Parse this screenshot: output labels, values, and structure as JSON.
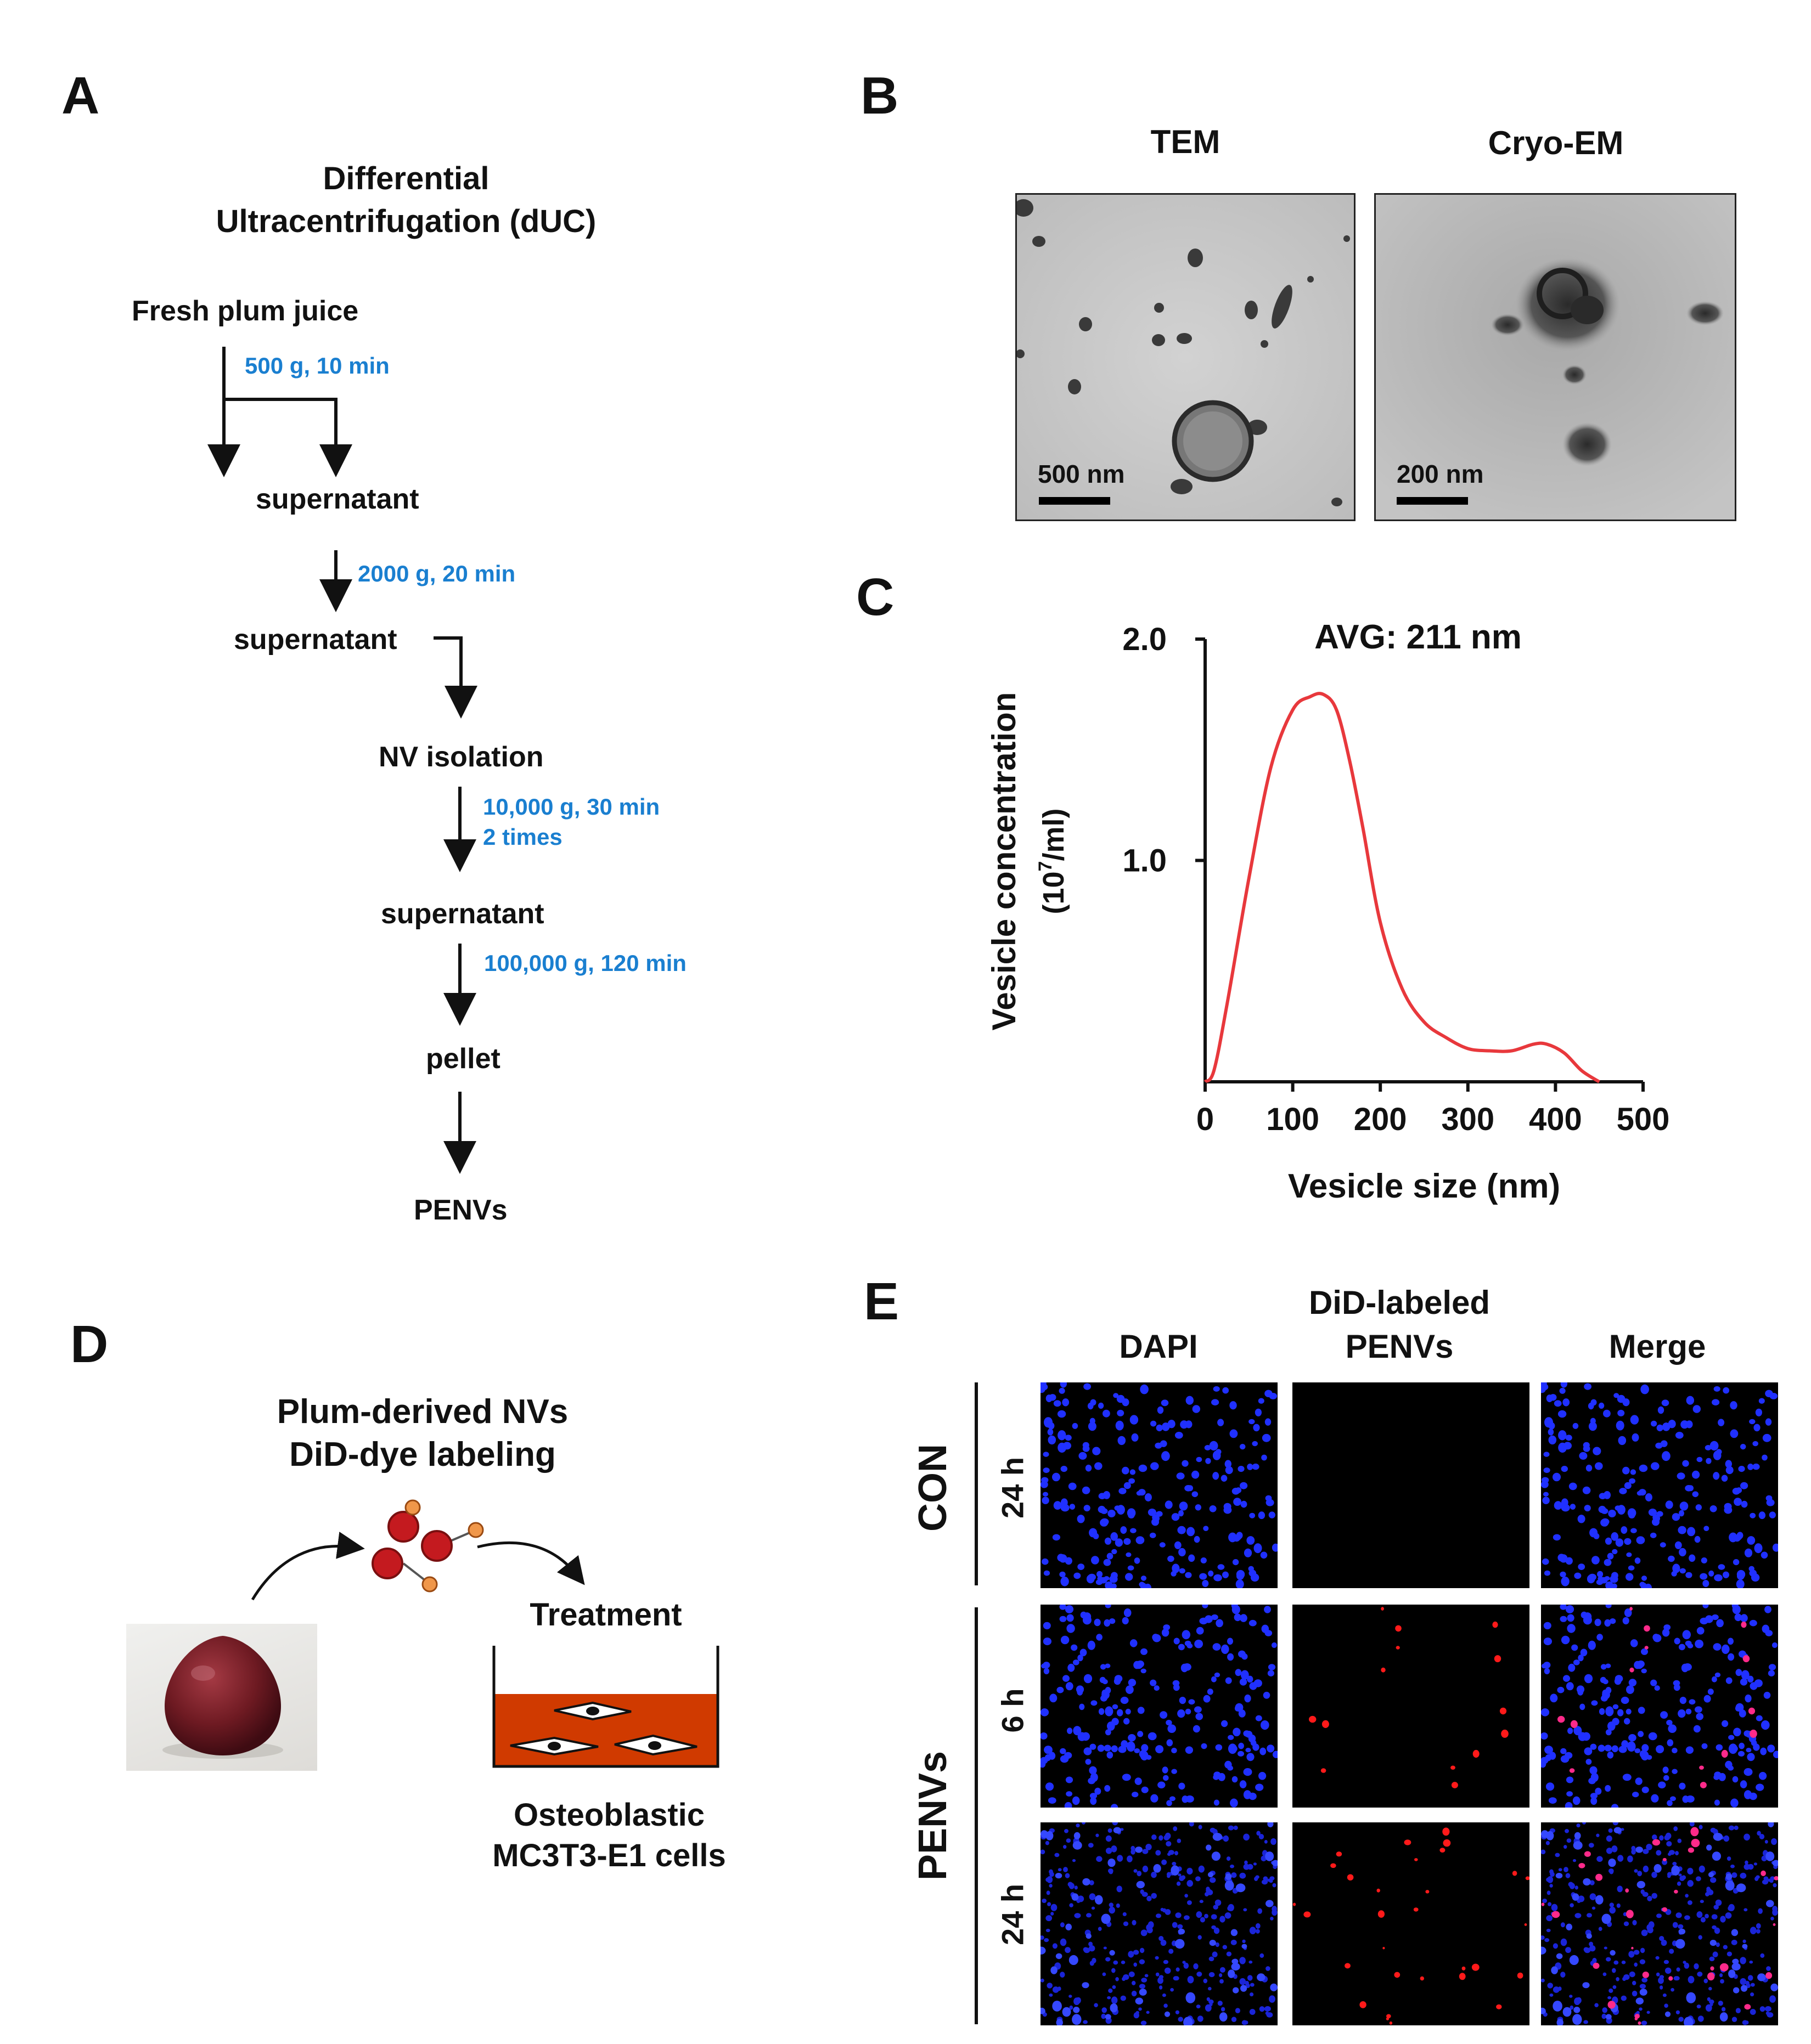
{
  "panels": {
    "a": "A",
    "b": "B",
    "c": "C",
    "d": "D",
    "e": "E"
  },
  "panelA": {
    "title_line1": "Differential",
    "title_line2": "Ultracentrifugation (dUC)",
    "steps": [
      "Fresh plum juice",
      "supernatant",
      "supernatant",
      "NV isolation",
      "supernatant",
      "pellet",
      "PENVs"
    ],
    "conditions": {
      "c1": "500 g, 10 min",
      "c2": "2000 g, 20 min",
      "c3_line1": "10,000 g, 30 min",
      "c3_line2": "2 times",
      "c4": "100,000 g, 120 min"
    },
    "condition_color": "#1a7fd0"
  },
  "panelB": {
    "tem_title": "TEM",
    "cryo_title": "Cryo-EM",
    "tem_scale": "500 nm",
    "cryo_scale": "200 nm"
  },
  "chart_data": {
    "type": "line",
    "annotation": "AVG: 211 nm",
    "xlabel": "Vesicle size (nm)",
    "ylabel_line1": "Vesicle concentration",
    "ylabel_line2_base": "(10",
    "ylabel_line2_sup": "7",
    "ylabel_line2_end": "/ml)",
    "xticks": [
      0,
      100,
      200,
      300,
      400,
      500
    ],
    "yticks": [
      1.0,
      2.0
    ],
    "ytick_labels": [
      "1.0",
      "2.0"
    ],
    "xlim": [
      0,
      500
    ],
    "ylim": [
      0,
      2.0
    ],
    "line_color": "#e8383c",
    "series": [
      {
        "x": [
          0,
          10,
          25,
          50,
          75,
          100,
          120,
          135,
          150,
          165,
          180,
          200,
          225,
          250,
          275,
          300,
          325,
          350,
          375,
          390,
          410,
          430,
          450
        ],
        "y": [
          0.0,
          0.05,
          0.35,
          0.92,
          1.42,
          1.68,
          1.74,
          1.75,
          1.68,
          1.45,
          1.15,
          0.72,
          0.42,
          0.27,
          0.2,
          0.15,
          0.14,
          0.14,
          0.17,
          0.17,
          0.13,
          0.05,
          0.0
        ]
      }
    ]
  },
  "panelD": {
    "title_line1": "Plum-derived NVs",
    "title_line2": "DiD-dye labeling",
    "treatment": "Treatment",
    "cells_line1": "Osteoblastic",
    "cells_line2": "MC3T3-E1 cells"
  },
  "panelE": {
    "col_dapi": "DAPI",
    "col_did_line1": "DiD-labeled",
    "col_did_line2": "PENVs",
    "col_merge": "Merge",
    "group_con": "CON",
    "group_penvs": "PENVs",
    "rows": [
      "24 h",
      "6 h",
      "24 h"
    ]
  }
}
